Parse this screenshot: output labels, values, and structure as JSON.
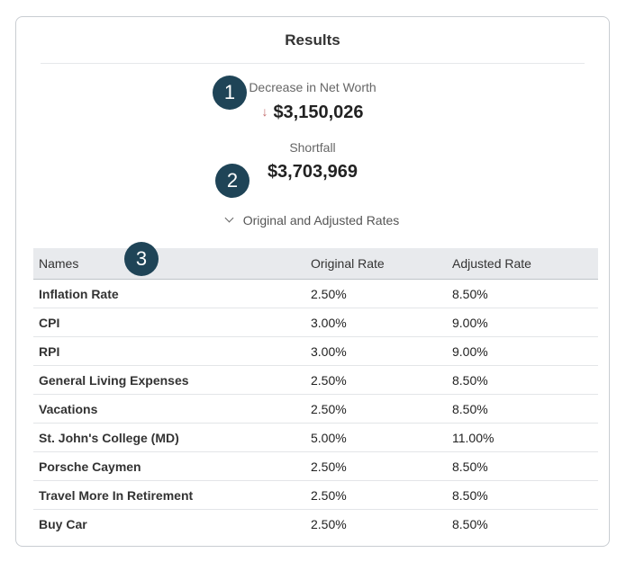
{
  "title": "Results",
  "badges": [
    "1",
    "2",
    "3"
  ],
  "decrease": {
    "label": "Decrease in Net Worth",
    "value": "$3,150,026",
    "arrow": "↓"
  },
  "shortfall": {
    "label": "Shortfall",
    "value": "$3,703,969"
  },
  "toggle": {
    "label": "Original and Adjusted Rates"
  },
  "table": {
    "headers": [
      "Names",
      "Original Rate",
      "Adjusted Rate"
    ],
    "rows": [
      [
        "Inflation Rate",
        "2.50%",
        "8.50%"
      ],
      [
        "CPI",
        "3.00%",
        "9.00%"
      ],
      [
        "RPI",
        "3.00%",
        "9.00%"
      ],
      [
        "General Living Expenses",
        "2.50%",
        "8.50%"
      ],
      [
        "Vacations",
        "2.50%",
        "8.50%"
      ],
      [
        "St. John's College (MD)",
        "5.00%",
        "11.00%"
      ],
      [
        "Porsche Caymen",
        "2.50%",
        "8.50%"
      ],
      [
        "Travel More In Retirement",
        "2.50%",
        "8.50%"
      ],
      [
        "Buy Car",
        "2.50%",
        "8.50%"
      ]
    ]
  },
  "colors": {
    "badge": "#1f4457",
    "header_bg": "#e8eaed",
    "arrow_down": "#c26a6a"
  }
}
